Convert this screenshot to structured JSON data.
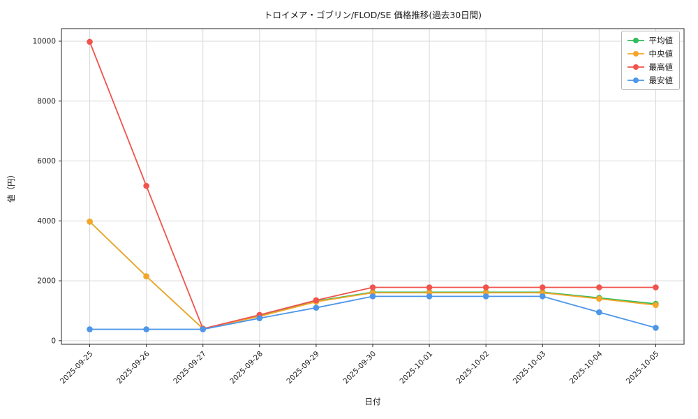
{
  "chart_data": {
    "type": "line",
    "title": "トロイメア・ゴブリン/FLOD/SE 価格推移(過去30日間)",
    "xlabel": "日付",
    "ylabel": "値（円）",
    "categories": [
      "2025-09-25",
      "2025-09-26",
      "2025-09-27",
      "2025-09-28",
      "2025-09-29",
      "2025-09-30",
      "2025-10-01",
      "2025-10-02",
      "2025-10-03",
      "2025-10-04",
      "2025-10-05"
    ],
    "series": [
      {
        "name": "平均値",
        "color": "#2ebd59",
        "values": [
          3975,
          2150,
          400,
          830,
          1320,
          1620,
          1620,
          1620,
          1620,
          1430,
          1230
        ]
      },
      {
        "name": "中央値",
        "color": "#f5a62a",
        "values": [
          3975,
          2150,
          400,
          810,
          1300,
          1600,
          1600,
          1600,
          1600,
          1400,
          1190
        ]
      },
      {
        "name": "最高値",
        "color": "#f0544c",
        "values": [
          9980,
          5170,
          400,
          860,
          1350,
          1780,
          1780,
          1780,
          1780,
          1780,
          1780
        ]
      },
      {
        "name": "最安値",
        "color": "#4d96e9",
        "values": [
          380,
          380,
          380,
          750,
          1100,
          1480,
          1480,
          1480,
          1480,
          950,
          430
        ]
      }
    ],
    "ylim": [
      -120,
      10420
    ],
    "yticks": [
      0,
      2000,
      4000,
      6000,
      8000,
      10000
    ],
    "grid": true,
    "legend_position": "top-right"
  }
}
